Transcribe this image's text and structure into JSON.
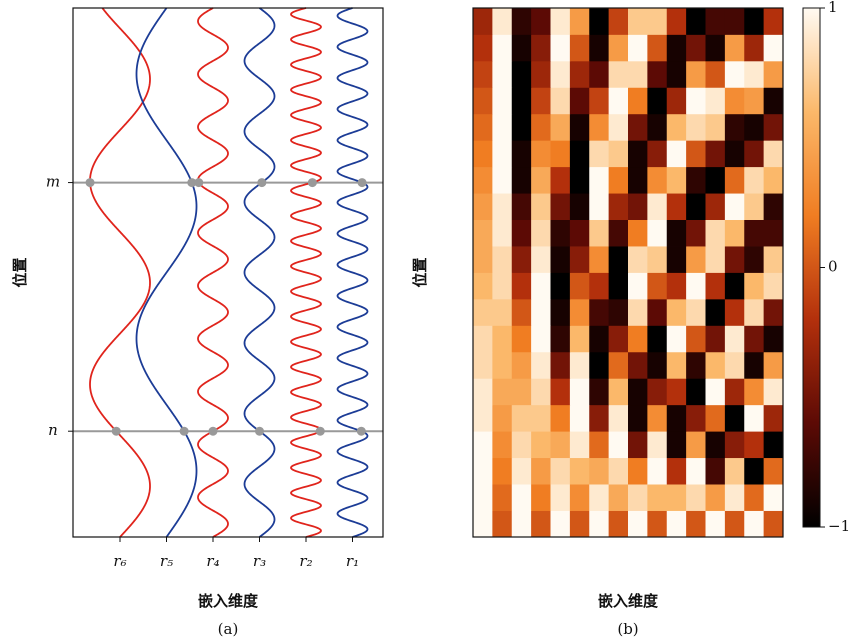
{
  "chart_data": [
    {
      "type": "wave",
      "xlabel": "嵌入维度",
      "ylabel": "位置",
      "caption": "(a)",
      "ylim": [
        0,
        1
      ],
      "yticks": [
        {
          "value": 0.67,
          "label": "m"
        },
        {
          "value": 0.2,
          "label": "n"
        }
      ],
      "grid_color": "#999999",
      "marker_color": "#999999",
      "series": [
        {
          "name": "r₆",
          "color": "#e0241c",
          "cycles": 2.6
        },
        {
          "name": "r₅",
          "color": "#1c3c96",
          "cycles": 2
        },
        {
          "name": "r₄",
          "color": "#e0241c",
          "cycles": 10
        },
        {
          "name": "r₃",
          "color": "#1c3c96",
          "cycles": 7.5
        },
        {
          "name": "r₂",
          "color": "#e0241c",
          "cycles": 21
        },
        {
          "name": "r₁",
          "color": "#1c3c96",
          "cycles": 17
        }
      ]
    },
    {
      "type": "heatmap",
      "xlabel": "嵌入维度",
      "ylabel": "位置",
      "caption": "(b)",
      "clim": [
        -1,
        1
      ],
      "cticks": [
        1,
        0,
        {
          "value": -1,
          "label": "−1"
        }
      ],
      "colorscale": [
        "#000000",
        "#5c0a05",
        "#b3300c",
        "#f07d22",
        "#fbb86a",
        "#fffaf2"
      ],
      "z": [
        [
          1,
          0,
          1,
          0,
          1,
          0,
          1,
          0,
          1,
          0,
          1,
          0,
          1,
          0,
          1,
          0
        ],
        [
          1,
          0.1,
          1,
          0.2,
          0.9,
          0.3,
          0.9,
          0.5,
          0.8,
          0.6,
          0.6,
          0.8,
          0.4,
          0.9,
          0.1,
          1
        ],
        [
          1,
          0.2,
          0.9,
          0.4,
          0.8,
          0.6,
          0.5,
          0.8,
          0.2,
          1,
          -0.2,
          1,
          -0.7,
          0.7,
          -1,
          0.1
        ],
        [
          1,
          0.3,
          0.8,
          0.6,
          0.5,
          0.9,
          0.1,
          1,
          -0.5,
          0.9,
          -0.9,
          0.4,
          -0.9,
          -0.4,
          -0.2,
          -1
        ],
        [
          0.9,
          0.4,
          0.7,
          0.7,
          0.2,
          1,
          -0.4,
          0.9,
          -0.9,
          0.3,
          -0.9,
          -0.4,
          0.1,
          -1,
          1,
          -0.3
        ],
        [
          0.9,
          0.5,
          0.5,
          0.8,
          -0.2,
          1,
          -0.8,
          0.6,
          -0.9,
          -0.4,
          -0.2,
          -1,
          1,
          -0.3,
          0.3,
          0.9
        ],
        [
          0.8,
          0.6,
          0.4,
          0.9,
          -0.5,
          0.9,
          -1,
          0.1,
          -0.5,
          -0.9,
          0.6,
          -0.8,
          0.6,
          0.8,
          -0.9,
          0.4
        ],
        [
          0.8,
          0.6,
          0.2,
          1,
          -0.8,
          0.6,
          -0.9,
          -0.4,
          0.2,
          -1,
          1,
          0,
          -0.5,
          0.9,
          -0.5,
          -0.9
        ],
        [
          0.7,
          0.7,
          0,
          1,
          -0.9,
          0.3,
          -0.7,
          -0.8,
          0.8,
          -0.6,
          0.6,
          0.8,
          -1,
          -0.2,
          0.8,
          -0.5
        ],
        [
          0.6,
          0.8,
          -0.2,
          1,
          -1,
          0,
          -0.2,
          -1,
          1,
          0,
          -0.2,
          1,
          -0.2,
          -1,
          0.6,
          0.8
        ],
        [
          0.5,
          0.8,
          -0.4,
          0.9,
          -0.9,
          -0.4,
          0.3,
          -1,
          0.8,
          0.7,
          -0.9,
          0.4,
          0.8,
          -0.5,
          -0.8,
          0.7
        ],
        [
          0.5,
          0.9,
          -0.6,
          0.8,
          -0.8,
          -0.6,
          0.7,
          -0.7,
          0.2,
          1,
          -0.9,
          -0.5,
          0.8,
          0.6,
          -0.7,
          -0.7
        ],
        [
          0.4,
          0.9,
          -0.7,
          0.7,
          -0.5,
          -0.9,
          1,
          -0.3,
          -0.5,
          0.9,
          -0.2,
          -1,
          -0.3,
          1,
          0.7,
          -0.8
        ],
        [
          0.3,
          1,
          -0.9,
          0.5,
          -0.2,
          -1,
          1,
          0.2,
          -0.9,
          0.3,
          0.6,
          -0.8,
          -1,
          0.1,
          0.8,
          0.6
        ],
        [
          0.2,
          1,
          -0.9,
          0.3,
          0.2,
          -1,
          0.8,
          0.7,
          -0.9,
          -0.4,
          1,
          0,
          -0.5,
          -0.9,
          -0.5,
          0.8
        ],
        [
          0.1,
          1,
          -1,
          0.1,
          0.5,
          -0.9,
          0.3,
          0.9,
          -0.5,
          -0.9,
          0.6,
          0.8,
          0.7,
          -0.8,
          -0.9,
          -0.5
        ],
        [
          0,
          1,
          -1,
          -0.1,
          0.8,
          -0.6,
          -0.1,
          1,
          0.2,
          -1,
          -0.3,
          1,
          0.9,
          0.3,
          0.4,
          -0.9
        ],
        [
          -0.1,
          1,
          -1,
          -0.3,
          0.9,
          -0.3,
          -0.6,
          0.8,
          0.8,
          -0.6,
          -0.9,
          0.4,
          0,
          1,
          0.9,
          0.4
        ],
        [
          -0.2,
          1,
          -0.9,
          -0.4,
          1,
          0,
          -0.9,
          0.4,
          1,
          0,
          -0.9,
          -0.5,
          -0.9,
          0.4,
          -0.3,
          1
        ],
        [
          -0.3,
          0.9,
          -0.8,
          -0.6,
          0.9,
          0.4,
          -1,
          -0.1,
          0.7,
          0.7,
          -0.2,
          -1,
          -0.7,
          -0.7,
          -1,
          -0.2
        ]
      ]
    }
  ]
}
